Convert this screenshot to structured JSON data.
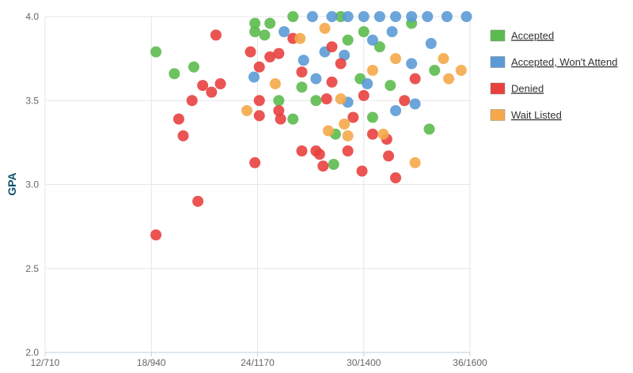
{
  "chart_data": {
    "type": "scatter",
    "y_label": "GPA",
    "xlim": [
      12,
      36
    ],
    "ylim": [
      2,
      4
    ],
    "xticks": [
      {
        "value": 12,
        "label": "12/710"
      },
      {
        "value": 18,
        "label": "18/940"
      },
      {
        "value": 24,
        "label": "24/1170"
      },
      {
        "value": 30,
        "label": "30/1400"
      },
      {
        "value": 36,
        "label": "36/1600"
      }
    ],
    "yticks": [
      {
        "value": 2,
        "label": "2.0"
      },
      2.5,
      {
        "value": 3,
        "label": "3.0"
      },
      3.5,
      {
        "value": 4,
        "label": "4.0"
      }
    ],
    "grid": true,
    "series": [
      {
        "name": "Accepted",
        "color": "#5cbb4e",
        "x": [
          18.26,
          19.3,
          20.4,
          23.85,
          23.85,
          24.7,
          24.4,
          25.2,
          26.0,
          26.0,
          27.3,
          28.3,
          28.4,
          29.1,
          29.8,
          30.5,
          31.5,
          33.7,
          34.0,
          32.7,
          30.9,
          28.7,
          26.5,
          30.0
        ],
        "values": [
          3.79,
          3.66,
          3.7,
          3.96,
          3.91,
          3.96,
          3.89,
          3.5,
          3.39,
          4.0,
          3.5,
          3.12,
          3.3,
          3.86,
          3.63,
          3.4,
          3.59,
          3.33,
          3.68,
          3.96,
          3.82,
          4.0,
          3.58,
          3.91
        ]
      },
      {
        "name": "Accepted, Won't Attend",
        "color": "#5b9bd5",
        "x": [
          27.1,
          28.2,
          29.1,
          30.0,
          30.9,
          31.8,
          32.7,
          33.6,
          34.7,
          35.8,
          23.8,
          32.9,
          31.8,
          30.2,
          29.1,
          27.8,
          28.9,
          30.5,
          31.6,
          32.7,
          33.8,
          26.6,
          25.5,
          27.3
        ],
        "values": [
          4.0,
          4.0,
          4.0,
          4.0,
          4.0,
          4.0,
          4.0,
          4.0,
          4.0,
          4.0,
          3.64,
          3.48,
          3.44,
          3.6,
          3.49,
          3.79,
          3.77,
          3.86,
          3.91,
          3.72,
          3.84,
          3.74,
          3.91,
          3.63
        ]
      },
      {
        "name": "Denied",
        "color": "#e8413f",
        "x": [
          18.26,
          20.63,
          19.8,
          19.55,
          20.3,
          20.9,
          21.4,
          21.9,
          21.65,
          23.85,
          24.1,
          24.1,
          23.6,
          24.1,
          24.7,
          25.2,
          25.2,
          25.3,
          26.0,
          26.5,
          26.5,
          27.3,
          27.5,
          27.7,
          27.9,
          28.2,
          29.1,
          29.4,
          29.9,
          30.5,
          31.3,
          31.8,
          32.3,
          32.9,
          31.4,
          30.0,
          28.7,
          28.2
        ],
        "values": [
          2.7,
          2.9,
          3.29,
          3.39,
          3.5,
          3.59,
          3.55,
          3.6,
          3.89,
          3.13,
          3.5,
          3.41,
          3.79,
          3.7,
          3.76,
          3.78,
          3.44,
          3.39,
          3.87,
          3.67,
          3.2,
          3.2,
          3.18,
          3.11,
          3.51,
          3.61,
          3.2,
          3.4,
          3.08,
          3.3,
          3.27,
          3.04,
          3.5,
          3.63,
          3.17,
          3.53,
          3.72,
          3.82
        ]
      },
      {
        "name": "Wait Listed",
        "color": "#f5a94a",
        "x": [
          23.4,
          25.0,
          26.4,
          32.9,
          35.5,
          34.8,
          34.5,
          28.9,
          28.0,
          29.1,
          31.1,
          28.7,
          30.5,
          31.8,
          27.8
        ],
        "values": [
          3.44,
          3.6,
          3.87,
          3.13,
          3.68,
          3.63,
          3.75,
          3.36,
          3.32,
          3.29,
          3.3,
          3.51,
          3.68,
          3.75,
          3.93
        ]
      }
    ]
  }
}
